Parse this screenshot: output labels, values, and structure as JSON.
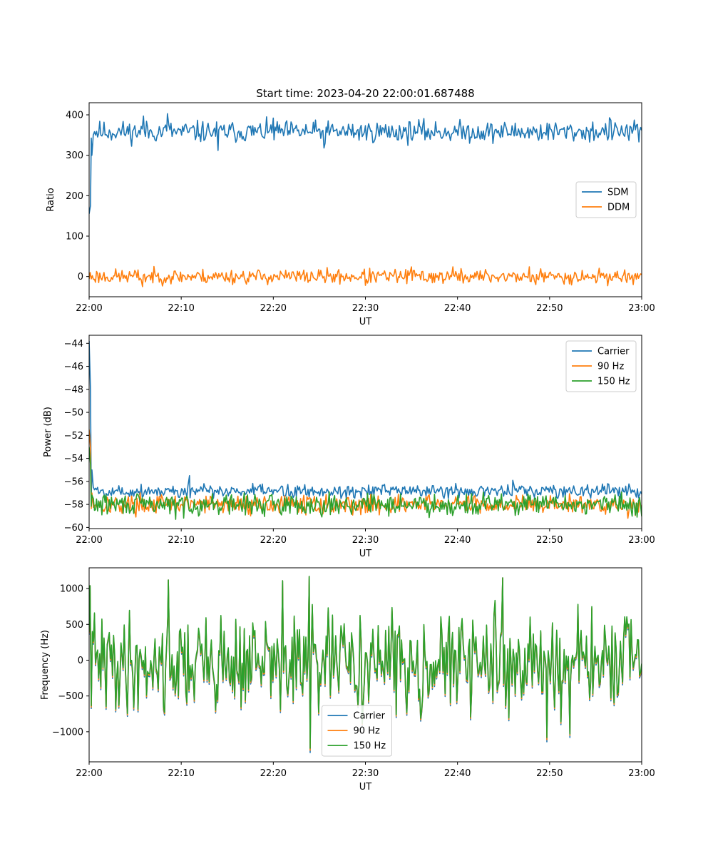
{
  "figure": {
    "title": "Start time: 2023-04-20 22:00:01.687488"
  },
  "colors": {
    "blue": "#1f77b4",
    "orange": "#ff7f0e",
    "green": "#2ca02c"
  },
  "chart_data": [
    {
      "type": "line",
      "xlabel": "UT",
      "ylabel": "Ratio",
      "xticks": [
        "22:00",
        "22:10",
        "22:20",
        "22:30",
        "22:40",
        "22:50",
        "23:00"
      ],
      "xlim": [
        0,
        60
      ],
      "ylim": [
        -50,
        430
      ],
      "yticks": [
        0,
        100,
        200,
        300,
        400
      ],
      "ytick_labels": [
        "0",
        "100",
        "200",
        "300",
        "400"
      ],
      "grid": false,
      "legend_position": "center-right",
      "series": [
        {
          "name": "SDM",
          "color": "#1f77b4",
          "base": 358,
          "noise": 13,
          "seed": 11,
          "points": [
            [
              0,
              155
            ],
            [
              0.15,
              175
            ],
            [
              0.3,
              300
            ],
            [
              0.45,
              350
            ],
            [
              8.5,
              403
            ],
            [
              5.9,
              397
            ],
            [
              14.0,
              312
            ],
            [
              20.0,
              392
            ],
            [
              25.5,
              318
            ],
            [
              35.8,
              388
            ],
            [
              61.0,
              352
            ],
            [
              56.5,
              393
            ],
            [
              59.7,
              333
            ]
          ]
        },
        {
          "name": "DDM",
          "color": "#ff7f0e",
          "base": 0,
          "noise": 9,
          "seed": 23,
          "points": [
            [
              5.8,
              -25
            ],
            [
              30.0,
              -22
            ],
            [
              35.0,
              24
            ],
            [
              39.5,
              24
            ],
            [
              47.8,
              24
            ],
            [
              48.5,
              -20
            ]
          ]
        }
      ]
    },
    {
      "type": "line",
      "xlabel": "UT",
      "ylabel": "Power (dB)",
      "xticks": [
        "22:00",
        "22:10",
        "22:20",
        "22:30",
        "22:40",
        "22:50",
        "23:00"
      ],
      "xlim": [
        0,
        60
      ],
      "ylim": [
        -60.1,
        -43.3
      ],
      "yticks": [
        -60,
        -58,
        -56,
        -54,
        -52,
        -50,
        -48,
        -46,
        -44
      ],
      "ytick_labels": [
        "−60",
        "−58",
        "−56",
        "−54",
        "−52",
        "−50",
        "−48",
        "−46",
        "−44"
      ],
      "grid": false,
      "legend_position": "top-right",
      "series": [
        {
          "name": "Carrier",
          "color": "#1f77b4",
          "base": -56.85,
          "noise": 0.3,
          "seed": 5,
          "points": [
            [
              0,
              -43.8
            ],
            [
              0.15,
              -48
            ],
            [
              0.3,
              -55
            ],
            [
              0.45,
              -56.5
            ],
            [
              10.9,
              -55.5
            ],
            [
              46.0,
              -55.9
            ],
            [
              56.3,
              -56.2
            ]
          ]
        },
        {
          "name": "90 Hz",
          "color": "#ff7f0e",
          "base": -58.0,
          "noise": 0.4,
          "seed": 17,
          "points": [
            [
              0,
              -51.5
            ],
            [
              0.15,
              -53
            ],
            [
              0.3,
              -57
            ],
            [
              29.5,
              -58.9
            ],
            [
              58.5,
              -59.2
            ]
          ]
        },
        {
          "name": "150 Hz",
          "color": "#2ca02c",
          "base": -58.0,
          "noise": 0.45,
          "seed": 29,
          "points": [
            [
              0,
              -53
            ],
            [
              0.15,
              -54.5
            ],
            [
              0.3,
              -57.2
            ],
            [
              9.4,
              -59.3
            ],
            [
              59.5,
              -59.1
            ]
          ]
        }
      ]
    },
    {
      "type": "line",
      "xlabel": "UT",
      "ylabel": "Frequency (Hz)",
      "xticks": [
        "22:00",
        "22:10",
        "22:20",
        "22:30",
        "22:40",
        "22:50",
        "23:00"
      ],
      "xlim": [
        0,
        60
      ],
      "ylim": [
        -1420,
        1290
      ],
      "yticks": [
        -1000,
        -500,
        0,
        500,
        1000
      ],
      "ytick_labels": [
        "−1000",
        "−500",
        "0",
        "500",
        "1000"
      ],
      "grid": false,
      "legend_position": "bottom-center",
      "series": [
        {
          "name": "Carrier",
          "color": "#1f77b4",
          "base": -70,
          "noise": 330,
          "seed": 41,
          "points": [
            [
              0.1,
              1040
            ],
            [
              8.6,
              1120
            ],
            [
              21.0,
              1110
            ],
            [
              23.9,
              1170
            ],
            [
              24.0,
              -1290
            ],
            [
              44.9,
              1150
            ],
            [
              49.7,
              -1140
            ],
            [
              52.2,
              -1080
            ]
          ]
        },
        {
          "name": "90 Hz",
          "color": "#ff7f0e",
          "base": -50,
          "noise": 330,
          "seed": 41,
          "points": [
            [
              0.1,
              1040
            ],
            [
              8.6,
              1120
            ],
            [
              21.0,
              1110
            ],
            [
              23.9,
              1170
            ],
            [
              24.0,
              -1260
            ],
            [
              44.9,
              1150
            ],
            [
              49.7,
              -1110
            ],
            [
              52.2,
              -1050
            ]
          ]
        },
        {
          "name": "150 Hz",
          "color": "#2ca02c",
          "base": -30,
          "noise": 330,
          "seed": 41,
          "points": [
            [
              0.1,
              1040
            ],
            [
              8.6,
              1120
            ],
            [
              21.0,
              1110
            ],
            [
              23.9,
              1170
            ],
            [
              24.0,
              -1230
            ],
            [
              44.9,
              1150
            ],
            [
              49.7,
              -1080
            ],
            [
              52.2,
              -1030
            ]
          ]
        }
      ]
    }
  ]
}
